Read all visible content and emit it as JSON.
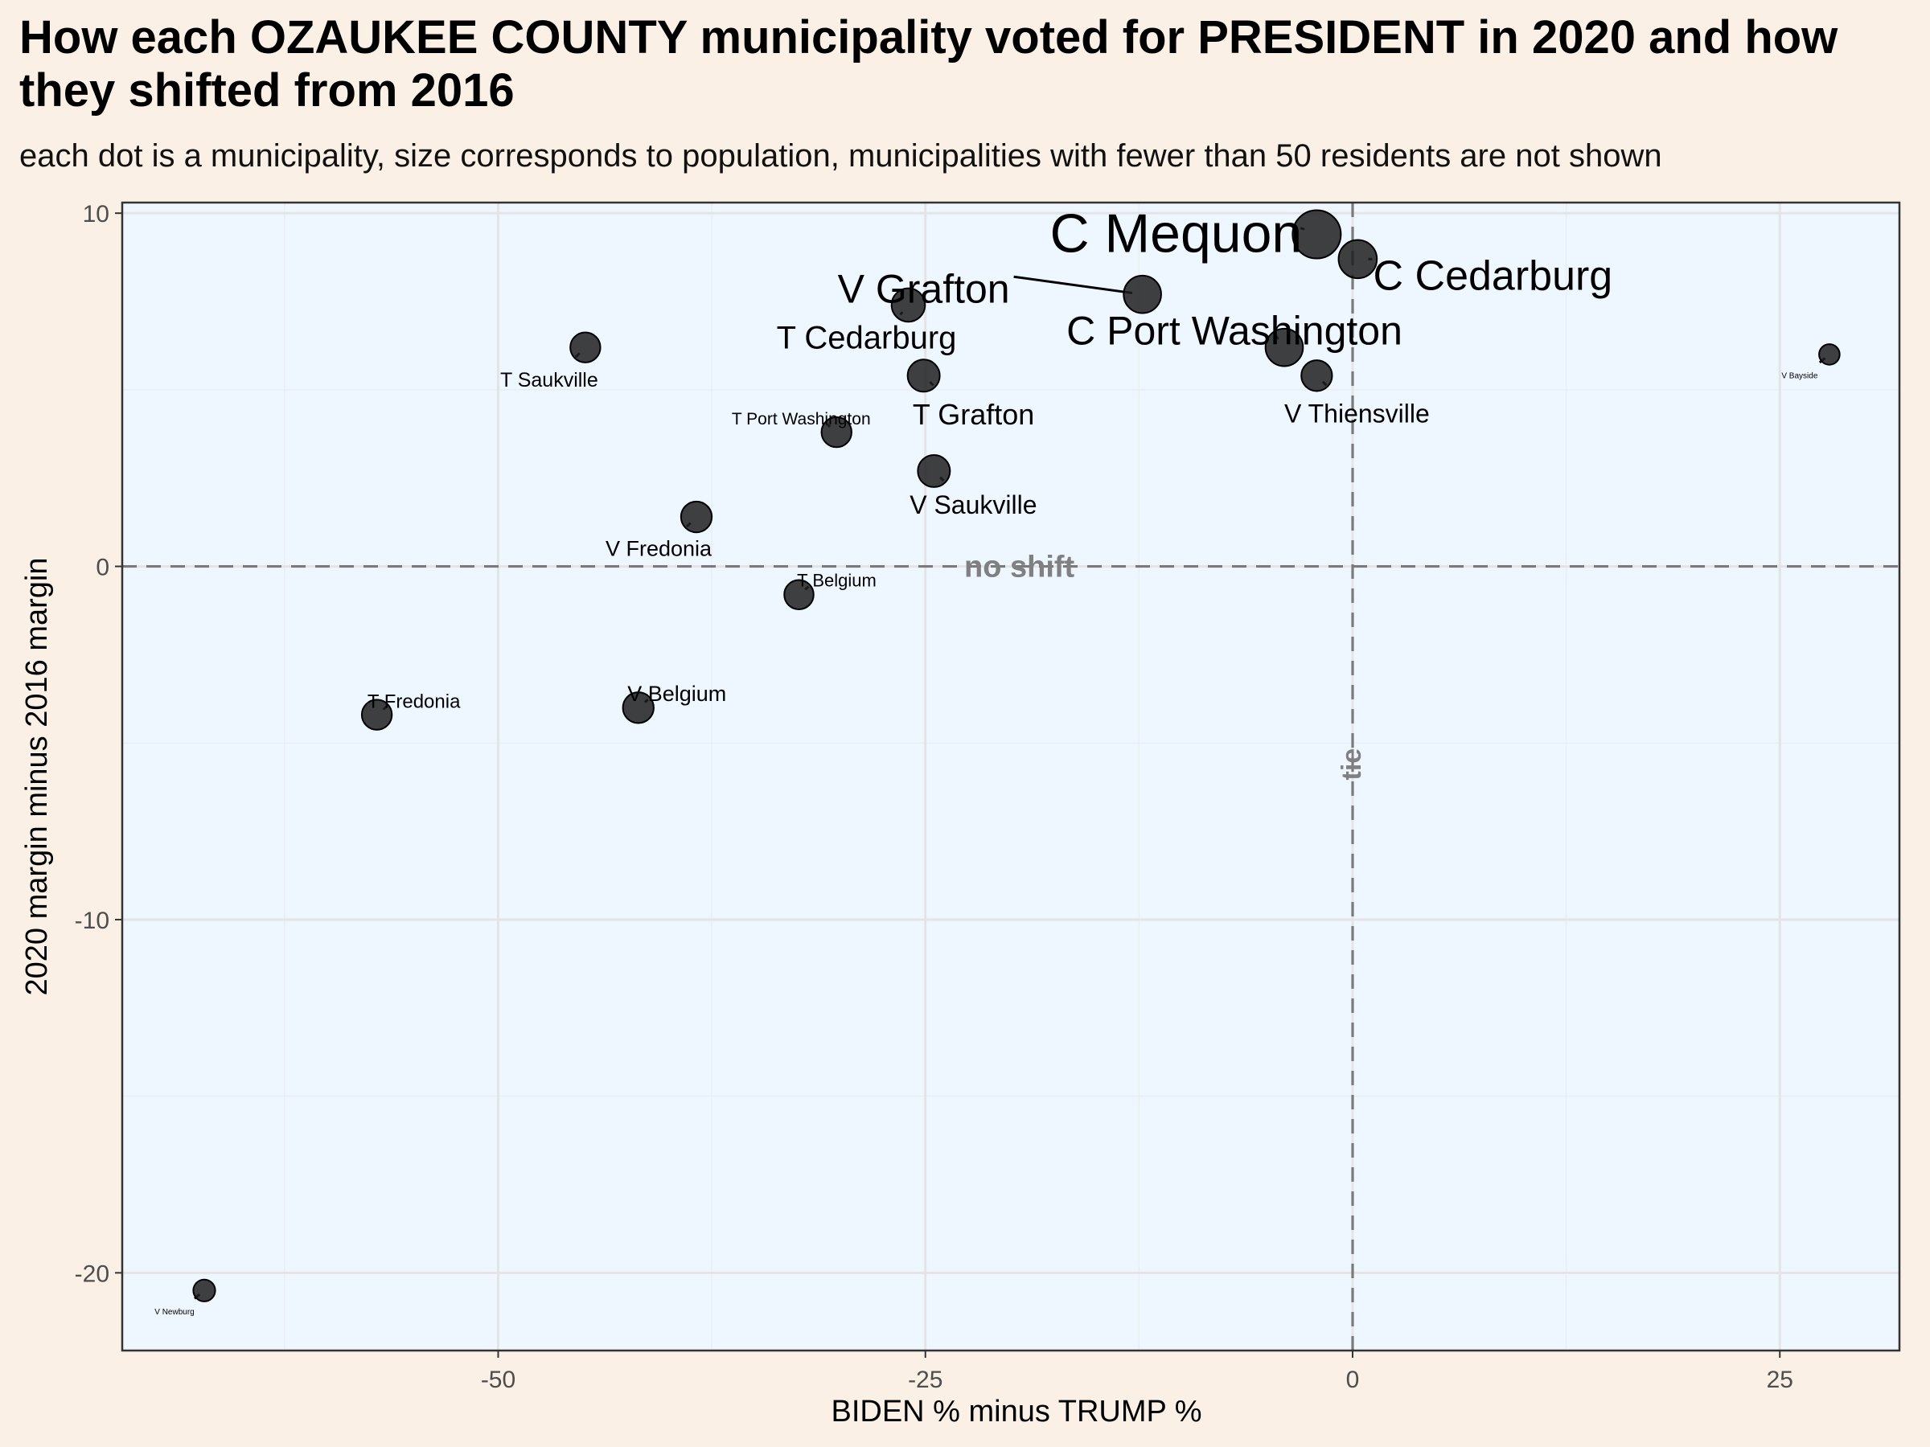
{
  "title": "How each OZAUKEE COUNTY municipality voted for PRESIDENT in 2020 and how they shifted from 2016",
  "subtitle": "each dot is a municipality, size corresponds to population, municipalities with fewer than 50 residents are not shown",
  "chart_data": {
    "type": "scatter",
    "xlabel": "BIDEN % minus TRUMP %",
    "ylabel": "2020 margin minus 2016 margin",
    "xlim": [
      -72,
      32
    ],
    "ylim": [
      -22.2,
      10.3
    ],
    "x_ticks": [
      -50,
      -25,
      0,
      25
    ],
    "y_ticks": [
      10,
      0,
      -10,
      -20
    ],
    "x_tick_labels": [
      "-50",
      "-25",
      "0",
      "25"
    ],
    "y_tick_labels": [
      "10",
      "0",
      "-10",
      "-20"
    ],
    "grid": true,
    "panel_color": "#eef7ff",
    "point_color": "#1f1f1f",
    "reference_lines": {
      "horizontal": {
        "y": 0,
        "label": "no shift"
      },
      "vertical": {
        "x": 0,
        "label": "tie"
      }
    },
    "points": [
      {
        "name": "C Mequon",
        "x": -2.1,
        "y": 9.4,
        "size": 1.0
      },
      {
        "name": "C Cedarburg",
        "x": 0.3,
        "y": 8.7,
        "size": 0.55
      },
      {
        "name": "V Grafton",
        "x": -12.3,
        "y": 7.7,
        "size": 0.52
      },
      {
        "name": "C Port Washington",
        "x": -4.0,
        "y": 6.2,
        "size": 0.52
      },
      {
        "name": "T Cedarburg",
        "x": -26.0,
        "y": 7.4,
        "size": 0.38
      },
      {
        "name": "T Grafton",
        "x": -25.1,
        "y": 5.4,
        "size": 0.34
      },
      {
        "name": "V Thiensville",
        "x": -2.1,
        "y": 5.4,
        "size": 0.3
      },
      {
        "name": "T Saukville",
        "x": -44.9,
        "y": 6.2,
        "size": 0.28
      },
      {
        "name": "T Port Washington",
        "x": -30.2,
        "y": 3.8,
        "size": 0.28
      },
      {
        "name": "V Saukville",
        "x": -24.5,
        "y": 2.7,
        "size": 0.34
      },
      {
        "name": "V Fredonia",
        "x": -38.4,
        "y": 1.4,
        "size": 0.3
      },
      {
        "name": "T Belgium",
        "x": -32.4,
        "y": -0.8,
        "size": 0.26
      },
      {
        "name": "V Belgium",
        "x": -41.8,
        "y": -4.0,
        "size": 0.3
      },
      {
        "name": "T Fredonia",
        "x": -57.1,
        "y": -4.2,
        "size": 0.28
      },
      {
        "name": "V Bayside",
        "x": 27.9,
        "y": 6.0,
        "size": 0.08
      },
      {
        "name": "V Newburg",
        "x": -67.2,
        "y": -20.5,
        "size": 0.1
      }
    ]
  }
}
